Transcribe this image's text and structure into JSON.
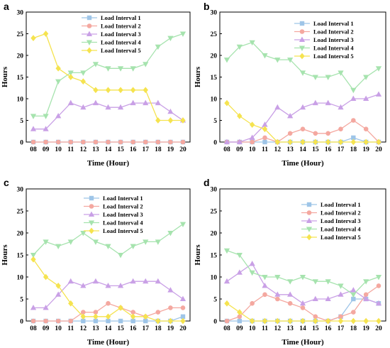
{
  "chart_data": [
    {
      "panel": "a",
      "type": "line",
      "x": [
        "08",
        "09",
        "10",
        "11",
        "12",
        "13",
        "14",
        "15",
        "16",
        "17",
        "18",
        "19",
        "20"
      ],
      "xlabel": "Time (Hour)",
      "ylabel": "Hours",
      "ylim": [
        0,
        30
      ],
      "yticks": [
        0,
        5,
        10,
        15,
        20,
        25,
        30
      ],
      "legend_position": "top-center",
      "series": [
        {
          "name": "Load Interval 1",
          "color": "#9ec5e8",
          "marker": "square",
          "values": [
            0,
            0,
            0,
            0,
            0,
            0,
            0,
            0,
            0,
            0,
            0,
            0,
            0
          ]
        },
        {
          "name": "Load Interval 2",
          "color": "#f4a8a0",
          "marker": "circle",
          "values": [
            0,
            0,
            0,
            0,
            0,
            0,
            0,
            0,
            0,
            0,
            0,
            0,
            0
          ]
        },
        {
          "name": "Load Interval 3",
          "color": "#c9a0e6",
          "marker": "triangle",
          "values": [
            3,
            3,
            6,
            9,
            8,
            9,
            8,
            8,
            9,
            9,
            9,
            7,
            5
          ]
        },
        {
          "name": "Load Interval 4",
          "color": "#a6e3ae",
          "marker": "tri-down",
          "values": [
            6,
            6,
            14,
            16,
            16,
            18,
            17,
            17,
            17,
            18,
            22,
            24,
            25
          ]
        },
        {
          "name": "Load Interval 5",
          "color": "#f5e34f",
          "marker": "diamond",
          "values": [
            24,
            25,
            17,
            15,
            14,
            12,
            12,
            12,
            12,
            12,
            5,
            5,
            5
          ]
        }
      ]
    },
    {
      "panel": "b",
      "type": "line",
      "x": [
        "08",
        "09",
        "10",
        "11",
        "12",
        "13",
        "14",
        "15",
        "16",
        "17",
        "18",
        "19",
        "20"
      ],
      "xlabel": "Time (Hour)",
      "ylabel": "Hours",
      "ylim": [
        0,
        30
      ],
      "yticks": [
        0,
        5,
        10,
        15,
        20,
        25,
        30
      ],
      "legend_position": "top-right",
      "series": [
        {
          "name": "Load Interval 1",
          "color": "#9ec5e8",
          "marker": "square",
          "values": [
            0,
            0,
            0,
            0,
            0,
            0,
            0,
            0,
            0,
            0,
            1,
            0,
            0
          ]
        },
        {
          "name": "Load Interval 2",
          "color": "#f4a8a0",
          "marker": "circle",
          "values": [
            0,
            0,
            0,
            1,
            0,
            2,
            3,
            2,
            2,
            3,
            5,
            3,
            0
          ]
        },
        {
          "name": "Load Interval 3",
          "color": "#c9a0e6",
          "marker": "triangle",
          "values": [
            0,
            0,
            1,
            4,
            8,
            6,
            8,
            9,
            9,
            8,
            10,
            10,
            11
          ]
        },
        {
          "name": "Load Interval 4",
          "color": "#a6e3ae",
          "marker": "tri-down",
          "values": [
            19,
            22,
            23,
            20,
            19,
            19,
            16,
            15,
            15,
            16,
            12,
            15,
            17
          ]
        },
        {
          "name": "Load Interval 5",
          "color": "#f5e34f",
          "marker": "diamond",
          "values": [
            9,
            6,
            4,
            3,
            0,
            0,
            0,
            0,
            0,
            0,
            0,
            0,
            0
          ]
        }
      ]
    },
    {
      "panel": "c",
      "type": "line",
      "x": [
        "08",
        "09",
        "10",
        "11",
        "12",
        "13",
        "14",
        "15",
        "16",
        "17",
        "18",
        "19",
        "20"
      ],
      "xlabel": "Time (Hour)",
      "ylabel": "Hours",
      "ylim": [
        0,
        30
      ],
      "yticks": [
        0,
        5,
        10,
        15,
        20,
        25,
        30
      ],
      "legend_position": "top-center",
      "series": [
        {
          "name": "Load Interval 1",
          "color": "#9ec5e8",
          "marker": "square",
          "values": [
            0,
            0,
            0,
            0,
            0,
            0,
            0,
            0,
            0,
            0,
            0,
            0,
            1
          ]
        },
        {
          "name": "Load Interval 2",
          "color": "#f4a8a0",
          "marker": "circle",
          "values": [
            0,
            0,
            0,
            0,
            2,
            2,
            4,
            3,
            2,
            1,
            2,
            3,
            3
          ]
        },
        {
          "name": "Load Interval 3",
          "color": "#c9a0e6",
          "marker": "triangle",
          "values": [
            3,
            3,
            6,
            9,
            8,
            9,
            8,
            8,
            9,
            9,
            9,
            7,
            5
          ]
        },
        {
          "name": "Load Interval 4",
          "color": "#a6e3ae",
          "marker": "tri-down",
          "values": [
            15,
            18,
            17,
            18,
            20,
            18,
            17,
            15,
            17,
            18,
            18,
            20,
            22
          ]
        },
        {
          "name": "Load Interval 5",
          "color": "#f5e34f",
          "marker": "diamond",
          "values": [
            14,
            10,
            8,
            4,
            1,
            1,
            1,
            3,
            1,
            1,
            0,
            0,
            0
          ]
        }
      ]
    },
    {
      "panel": "d",
      "type": "line",
      "x": [
        "08",
        "09",
        "10",
        "11",
        "12",
        "13",
        "14",
        "15",
        "16",
        "17",
        "18",
        "19",
        "20"
      ],
      "xlabel": "Time (Hour)",
      "ylabel": "Hours",
      "ylim": [
        0,
        30
      ],
      "yticks": [
        0,
        5,
        10,
        15,
        20,
        25,
        30
      ],
      "legend_position": "top-right",
      "series": [
        {
          "name": "Load Interval 1",
          "color": "#9ec5e8",
          "marker": "square",
          "values": [
            0,
            0,
            0,
            0,
            0,
            0,
            0,
            0,
            0,
            1,
            5,
            5,
            4
          ]
        },
        {
          "name": "Load Interval 2",
          "color": "#f4a8a0",
          "marker": "circle",
          "values": [
            0,
            1,
            4,
            6,
            5,
            4,
            3,
            1,
            0,
            1,
            2,
            6,
            8
          ]
        },
        {
          "name": "Load Interval 3",
          "color": "#c9a0e6",
          "marker": "triangle",
          "values": [
            9,
            11,
            13,
            8,
            6,
            6,
            4,
            5,
            5,
            6,
            7,
            5,
            4
          ]
        },
        {
          "name": "Load Interval 4",
          "color": "#a6e3ae",
          "marker": "tri-down",
          "values": [
            16,
            15,
            11,
            10,
            10,
            9,
            10,
            9,
            9,
            8,
            6,
            9,
            10
          ]
        },
        {
          "name": "Load Interval 5",
          "color": "#f5e34f",
          "marker": "diamond",
          "values": [
            4,
            2,
            0,
            0,
            0,
            0,
            0,
            0,
            0,
            0,
            0,
            0,
            0
          ]
        }
      ]
    }
  ]
}
